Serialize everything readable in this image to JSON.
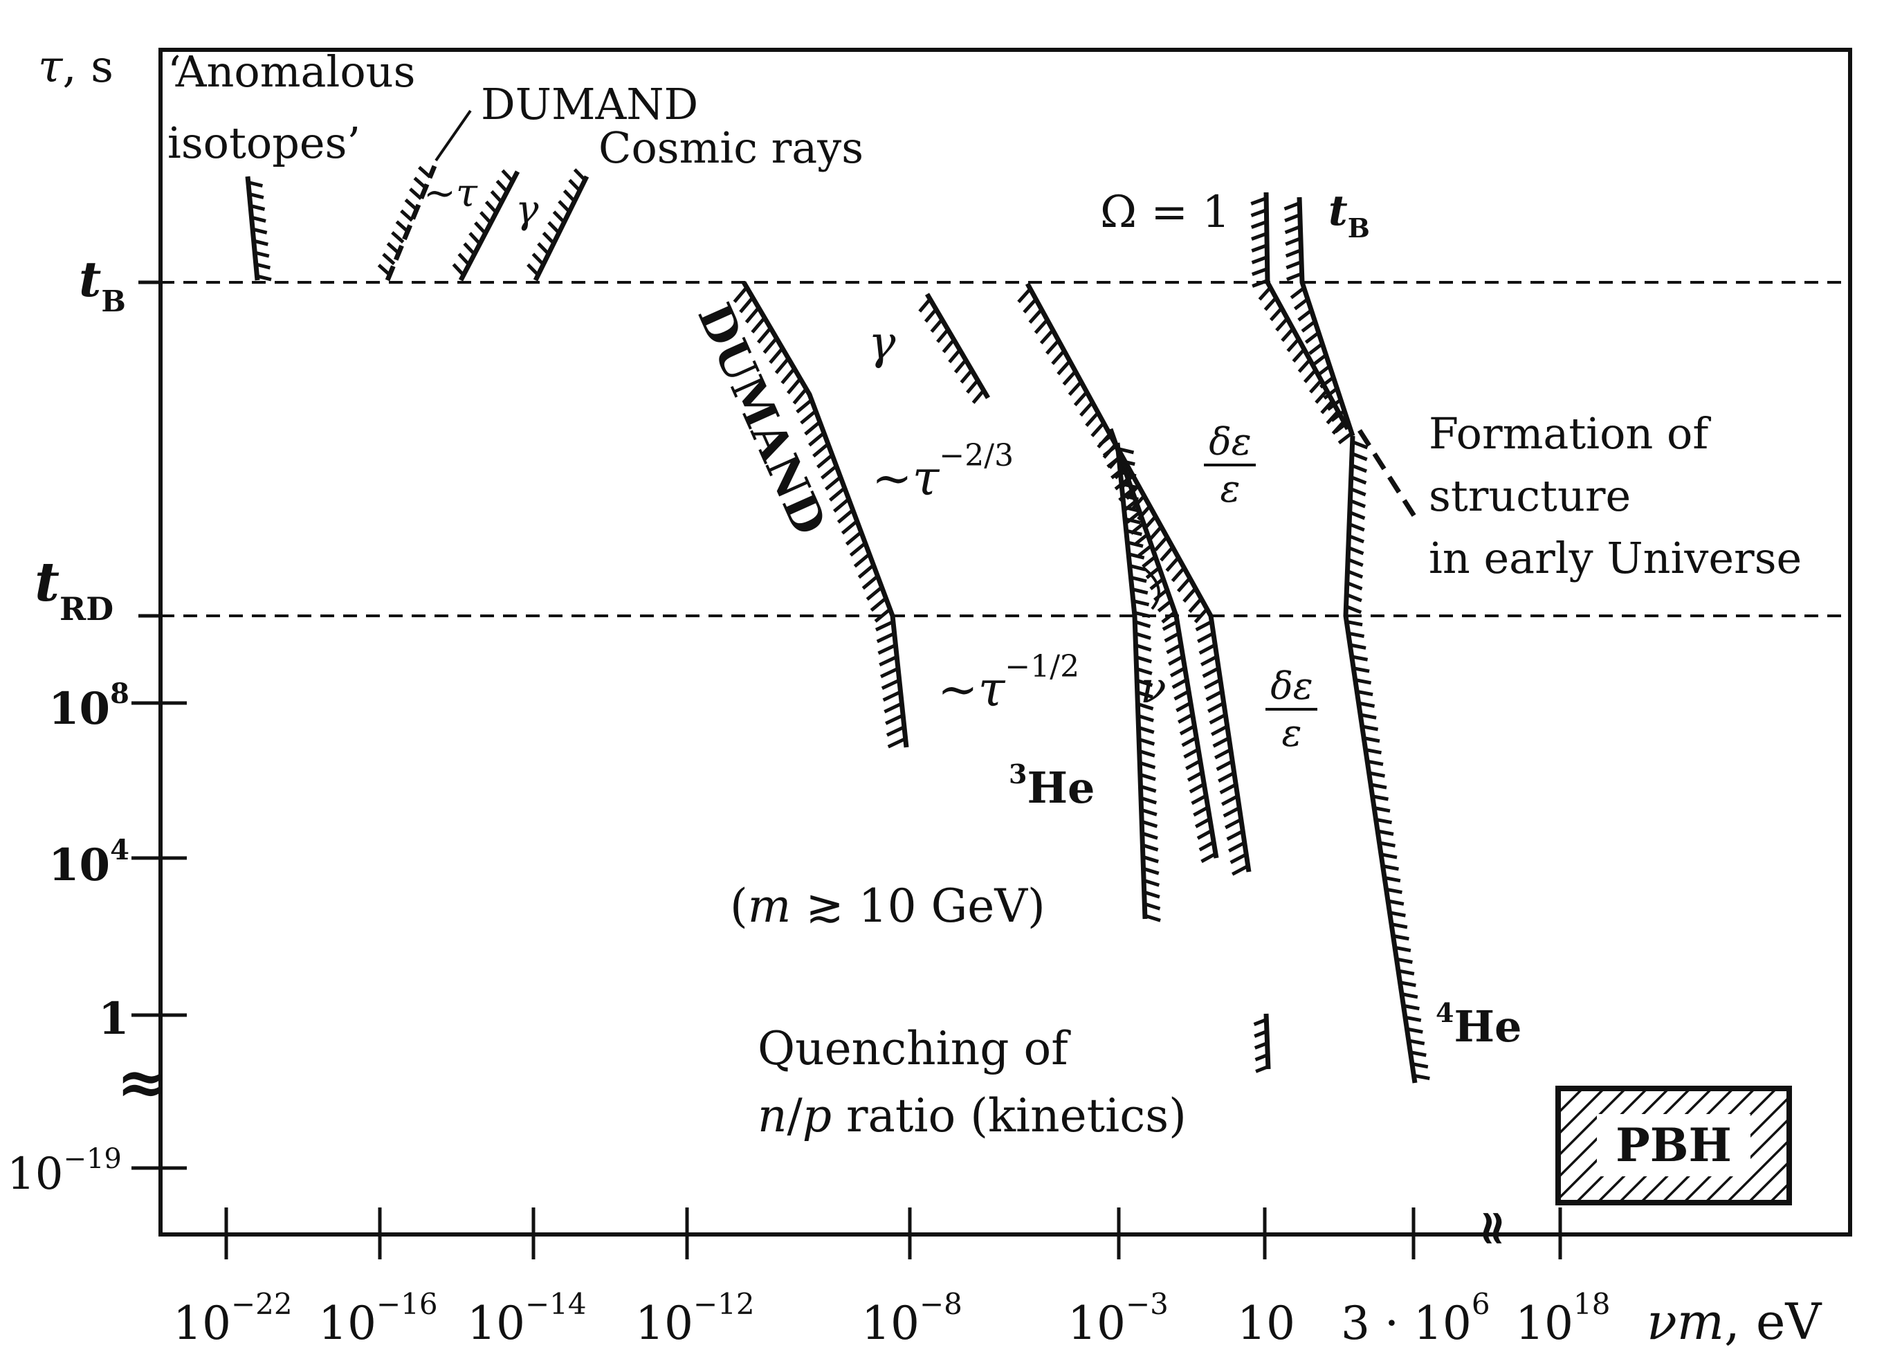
{
  "axes": {
    "y_label": {
      "tau": "τ",
      "unit": ", s"
    },
    "x_label": {
      "var": "νm",
      "unit": ", eV"
    },
    "y_ticks": [
      {
        "base": "t",
        "sub": "B"
      },
      {
        "base": "t",
        "sub": "RD"
      },
      {
        "base": "10",
        "sup": "8"
      },
      {
        "base": "10",
        "sup": "4"
      },
      {
        "base": "1"
      },
      {
        "base": "10",
        "sup": "−19"
      }
    ],
    "y_break": "≈",
    "x_ticks": [
      {
        "base": "10",
        "sup": "−22"
      },
      {
        "base": "10",
        "sup": "−16"
      },
      {
        "base": "10",
        "sup": "−14"
      },
      {
        "base": "10",
        "sup": "−12"
      },
      {
        "base": "10",
        "sup": "−8"
      },
      {
        "base": "10",
        "sup": "−3"
      },
      {
        "base": "10"
      },
      {
        "base": "3 · 10",
        "sup": "6"
      },
      {
        "base": "10",
        "sup": "18"
      }
    ],
    "x_break": "≈"
  },
  "labels": {
    "anomalous_1": "‘Anomalous",
    "anomalous_2": "isotopes’",
    "dumand_top": "DUMAND",
    "cosmic_rays": "Cosmic rays",
    "tau_small": "~τ",
    "gamma_small": "γ",
    "omega": "Ω = 1",
    "tb_right": {
      "base": "t",
      "sub": "B"
    },
    "gamma_mid": "γ",
    "dumand_rot": "DUMAND",
    "tau_23": {
      "base": "~τ",
      "sup": "−2/3"
    },
    "tau_12": {
      "base": "~τ",
      "sup": "−1/2"
    },
    "de_1": {
      "num": "δε",
      "den": "ε"
    },
    "de_2": {
      "num": "δε",
      "den": "ε"
    },
    "nu": "ν",
    "he3": {
      "sup": "3",
      "base": "He"
    },
    "he4": {
      "sup": "4",
      "base": "He"
    },
    "mass": {
      "open": "(",
      "m": "m",
      "rel": "≳",
      "rest": " 10 GeV)"
    },
    "formation_1": "Formation of",
    "formation_2": "structure",
    "formation_3": "in early Universe",
    "quench_1": "Quenching of",
    "quench_2": {
      "n": "n",
      "slash": "/",
      "p": "p",
      "rest": " ratio (kinetics)"
    },
    "pbh": "PBH"
  }
}
